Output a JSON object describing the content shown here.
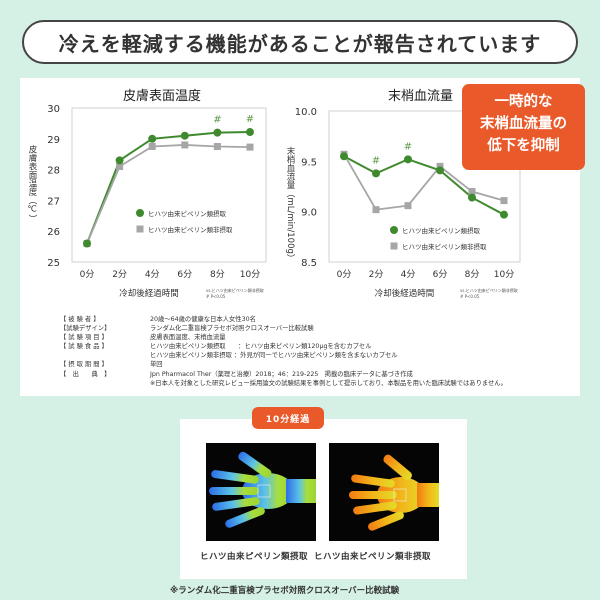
{
  "banner": {
    "title": "冷えを軽減する機能があることが報告されています"
  },
  "chart_data": [
    {
      "type": "line",
      "title": "皮膚表面温度",
      "ylabel": "皮膚表面温度（℃）",
      "xlabel": "冷却後経過時間",
      "categories": [
        "0分",
        "2分",
        "4分",
        "6分",
        "8分",
        "10分"
      ],
      "ylim": [
        25,
        30
      ],
      "yticks": [
        "25",
        "26",
        "27",
        "28",
        "29",
        "30"
      ],
      "series": [
        {
          "name": "ヒハツ由来ピペリン類摂取",
          "color": "#3f8a2e",
          "marker": "circle",
          "values": [
            25.6,
            28.3,
            29.0,
            29.1,
            29.2,
            29.22
          ]
        },
        {
          "name": "ヒハツ由来ピペリン類非摂取",
          "color": "#a6a6a6",
          "marker": "square",
          "values": [
            25.6,
            28.1,
            28.75,
            28.8,
            28.75,
            28.73
          ]
        }
      ],
      "significance": [
        "",
        "",
        "",
        "",
        "#",
        "#"
      ],
      "sig_note": [
        "vs.ヒハツ由来ピペリン類非摂取",
        "# P<0.05"
      ],
      "legend": "center-right"
    },
    {
      "type": "line",
      "title": "末梢血流量",
      "ylabel": "末梢血流量（mL/min/100g）",
      "xlabel": "冷却後経過時間",
      "categories": [
        "0分",
        "2分",
        "4分",
        "6分",
        "8分",
        "10分"
      ],
      "ylim": [
        8.5,
        10.0
      ],
      "yticks": [
        "8.5",
        "9.0",
        "9.5",
        "10.0"
      ],
      "series": [
        {
          "name": "ヒハツ由来ピペリン類摂取",
          "color": "#3f8a2e",
          "marker": "circle",
          "values": [
            9.55,
            9.38,
            9.52,
            9.41,
            9.14,
            8.97
          ]
        },
        {
          "name": "ヒハツ由来ピペリン類非摂取",
          "color": "#a6a6a6",
          "marker": "square",
          "values": [
            9.57,
            9.02,
            9.06,
            9.45,
            9.2,
            9.11
          ]
        }
      ],
      "significance": [
        "",
        "#",
        "#",
        "",
        "",
        ""
      ],
      "sig_note": [
        "vs.ヒハツ由来ピペリン類非摂取",
        "# P<0.05"
      ],
      "legend": "bottom-right"
    }
  ],
  "callout": {
    "lines": [
      "一時的な",
      "末梢血流量の",
      "低下を抑制"
    ],
    "color": "#e9592a"
  },
  "notes": [
    {
      "k": "【 被 験 者 】",
      "v": "20歳～64歳の健康な日本人女性30名"
    },
    {
      "k": "【試験デザイン】",
      "v": "ランダム化二重盲検プラセボ対照クロスオーバー比較試験"
    },
    {
      "k": "【 試 験 項 目 】",
      "v": "皮膚表面温度、末梢血流量"
    },
    {
      "k": "【 試 験 食 品 】",
      "v": "ヒハツ由来ピペリン類摂取　　：ヒハツ由来ピペリン類120μgを含むカプセル"
    },
    {
      "k": "",
      "v": "ヒハツ由来ピペリン類非摂取 ：外見が同一でヒハツ由来ピペリン類を含まないカプセル"
    },
    {
      "k": "【 摂 取 期 間 】",
      "v": "単回"
    },
    {
      "k": "【　出　　典　】",
      "v": "Jpn Pharmacol Ther（薬理と治療）2018；46：219-225　掲載の臨床データに基づき作成"
    },
    {
      "k": "",
      "v": "※日本人を対象とした研究レビュー採用論文の試験結果を事例として提示しており、本製品を用いた臨床試験ではありません。"
    }
  ],
  "thermo": {
    "badge": "10分経過",
    "left_caption": "ヒハツ由来ピペリン類摂取",
    "right_caption": "ヒハツ由来ピペリン類非摂取"
  },
  "footnote": "※ランダム化二重盲検プラセボ対照クロスオーバー比較試験"
}
